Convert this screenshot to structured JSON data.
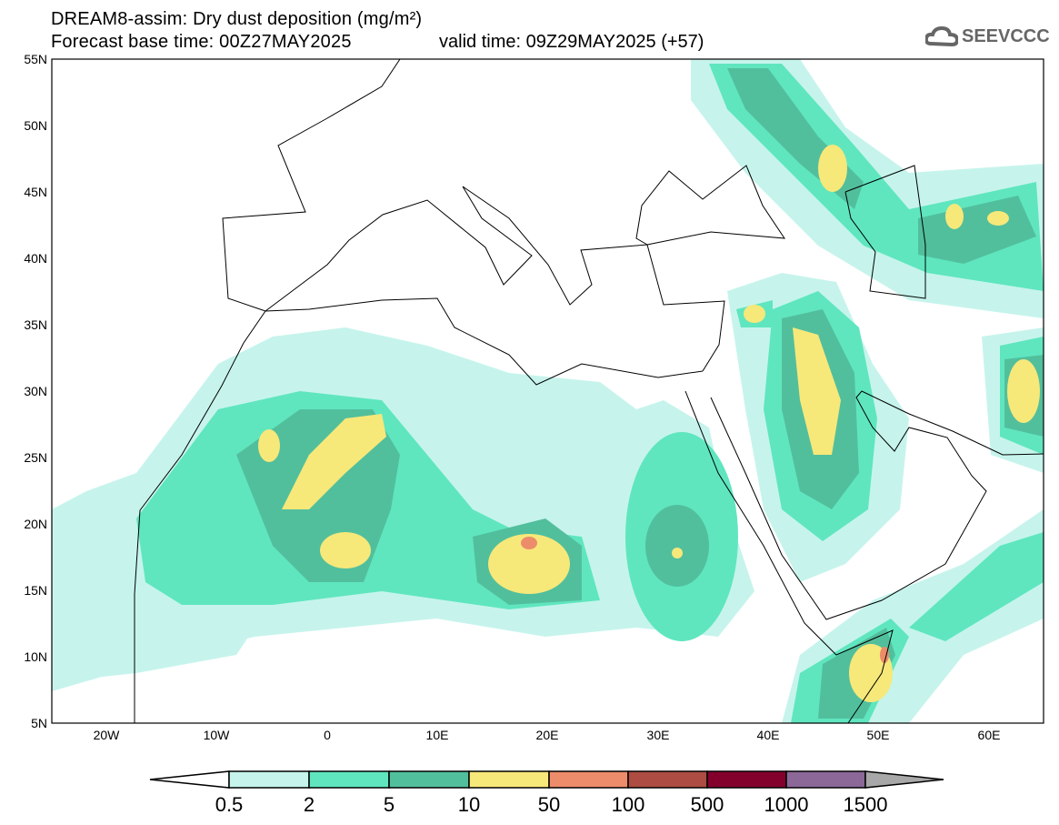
{
  "title": {
    "line1": "DREAM8-assim: Dry dust deposition (mg/m²)",
    "base_time": "Forecast base time: 00Z27MAY2025",
    "valid_time": "valid time: 09Z29MAY2025 (+57)"
  },
  "logo": {
    "text": "SEEVCCC",
    "icon": "cloud-icon"
  },
  "map": {
    "lat_labels": [
      "55N",
      "50N",
      "45N",
      "40N",
      "35N",
      "30N",
      "25N",
      "20N",
      "15N",
      "10N",
      "5N"
    ],
    "lon_labels": [
      "20W",
      "10W",
      "0",
      "10E",
      "20E",
      "30E",
      "40E",
      "50E",
      "60E"
    ]
  },
  "colorbar": {
    "labels": [
      "0.5",
      "2",
      "5",
      "10",
      "50",
      "100",
      "500",
      "1000",
      "1500"
    ],
    "colors": [
      "#ffffff",
      "#c6f4ec",
      "#5fe6bf",
      "#52bf9c",
      "#f7e87a",
      "#ec8c6a",
      "#ac4c42",
      "#84002c",
      "#8b6898",
      "#a8a8a8"
    ]
  }
}
